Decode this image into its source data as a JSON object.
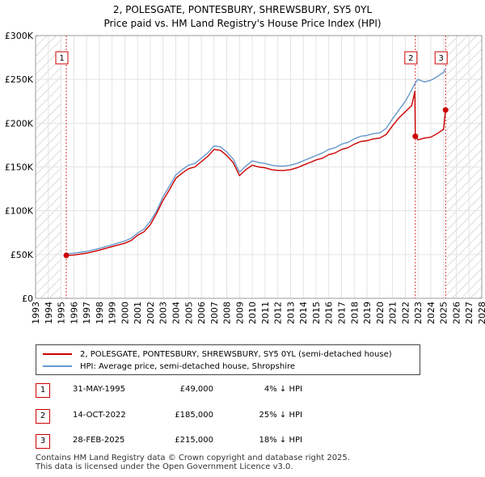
{
  "title_line1": "2, POLESGATE, PONTESBURY, SHREWSBURY, SY5 0YL",
  "title_line2": "Price paid vs. HM Land Registry's House Price Index (HPI)",
  "chart_data": {
    "type": "line",
    "xlim": [
      1993,
      2028
    ],
    "ylim": [
      0,
      300000
    ],
    "yticks": [
      {
        "value": 0,
        "label": "£0"
      },
      {
        "value": 50000,
        "label": "£50K"
      },
      {
        "value": 100000,
        "label": "£100K"
      },
      {
        "value": 150000,
        "label": "£150K"
      },
      {
        "value": 200000,
        "label": "£200K"
      },
      {
        "value": 250000,
        "label": "£250K"
      },
      {
        "value": 300000,
        "label": "£300K"
      }
    ],
    "xticks": [
      1993,
      1994,
      1995,
      1996,
      1997,
      1998,
      1999,
      2000,
      2001,
      2002,
      2003,
      2004,
      2005,
      2006,
      2007,
      2008,
      2009,
      2010,
      2011,
      2012,
      2013,
      2014,
      2015,
      2016,
      2017,
      2018,
      2019,
      2020,
      2021,
      2022,
      2023,
      2024,
      2025,
      2026,
      2027,
      2028
    ],
    "grid": true,
    "hatched_ranges": [
      [
        1993,
        1995.0
      ],
      [
        2025.2,
        2028
      ]
    ],
    "series": [
      {
        "name": "2, POLESGATE, PONTESBURY, SHREWSBURY, SY5 0YL (semi-detached house)",
        "color": "#cc0000",
        "x": [
          1995.41,
          1996,
          1997,
          1998,
          1999,
          2000,
          2000.5,
          2001,
          2001.5,
          2002,
          2002.5,
          2003,
          2003.5,
          2004,
          2004.5,
          2005,
          2005.5,
          2006,
          2006.5,
          2007,
          2007.5,
          2008,
          2008.5,
          2009,
          2009.5,
          2010,
          2010.5,
          2011,
          2011.5,
          2012,
          2012.5,
          2013,
          2013.5,
          2014,
          2014.5,
          2015,
          2015.5,
          2016,
          2016.5,
          2017,
          2017.5,
          2018,
          2018.5,
          2019,
          2019.5,
          2020,
          2020.5,
          2021,
          2021.5,
          2022,
          2022.5,
          2022.75,
          2022.79,
          2023,
          2023.5,
          2024,
          2024.5,
          2025,
          2025.16
        ],
        "y": [
          49000,
          49500,
          51500,
          55000,
          59000,
          63000,
          66000,
          72000,
          76000,
          84000,
          97000,
          112000,
          124000,
          137000,
          143000,
          148000,
          150000,
          156000,
          162000,
          170000,
          169000,
          163000,
          155000,
          140000,
          147000,
          152000,
          150000,
          149000,
          147000,
          146000,
          146000,
          147000,
          149000,
          152000,
          155000,
          158000,
          160000,
          164000,
          166000,
          170000,
          172000,
          176000,
          179000,
          180000,
          182000,
          183000,
          187000,
          197000,
          206000,
          213000,
          220000,
          236000,
          185000,
          181000,
          183000,
          184000,
          188000,
          193000,
          215000
        ]
      },
      {
        "name": "HPI: Average price, semi-detached house, Shropshire",
        "color": "#6699cc",
        "x": [
          1995.41,
          1996,
          1997,
          1998,
          1999,
          2000,
          2000.5,
          2001,
          2001.5,
          2002,
          2002.5,
          2003,
          2003.5,
          2004,
          2004.5,
          2005,
          2005.5,
          2006,
          2006.5,
          2007,
          2007.5,
          2008,
          2008.5,
          2009,
          2009.5,
          2010,
          2010.5,
          2011,
          2011.5,
          2012,
          2012.5,
          2013,
          2013.5,
          2014,
          2014.5,
          2015,
          2015.5,
          2016,
          2016.5,
          2017,
          2017.5,
          2018,
          2018.5,
          2019,
          2019.5,
          2020,
          2020.5,
          2021,
          2021.5,
          2022,
          2022.5,
          2022.79,
          2023,
          2023.5,
          2024,
          2024.5,
          2025,
          2025.16
        ],
        "y": [
          51000,
          51500,
          53500,
          57000,
          61000,
          65500,
          68500,
          74500,
          79000,
          88000,
          100000,
          116000,
          128000,
          141000,
          147000,
          152000,
          154000,
          160000,
          166000,
          174000,
          173000,
          167000,
          159000,
          144000,
          151000,
          157000,
          155000,
          154000,
          152000,
          151000,
          151000,
          152000,
          154000,
          157000,
          160000,
          163000,
          166000,
          170000,
          172000,
          176000,
          178000,
          182000,
          185000,
          186000,
          188000,
          189000,
          194000,
          205000,
          215000,
          225000,
          238000,
          246000,
          250000,
          247000,
          249000,
          253000,
          258000,
          262000
        ]
      }
    ],
    "sales": [
      {
        "label": "1",
        "x": 1995.41,
        "y": 49000
      },
      {
        "label": "2",
        "x": 2022.79,
        "y": 185000
      },
      {
        "label": "3",
        "x": 2025.16,
        "y": 215000
      }
    ]
  },
  "legend": {
    "property": "2, POLESGATE, PONTESBURY, SHREWSBURY, SY5 0YL (semi-detached house)",
    "hpi": "HPI: Average price, semi-detached house, Shropshire",
    "property_color": "#cc0000",
    "hpi_color": "#6699cc"
  },
  "sales_table": [
    {
      "label": "1",
      "date": "31-MAY-1995",
      "price": "£49,000",
      "delta": "4% ↓ HPI"
    },
    {
      "label": "2",
      "date": "14-OCT-2022",
      "price": "£185,000",
      "delta": "25% ↓ HPI"
    },
    {
      "label": "3",
      "date": "28-FEB-2025",
      "price": "£215,000",
      "delta": "18% ↓ HPI"
    }
  ],
  "footer_line1": "Contains HM Land Registry data © Crown copyright and database right 2025.",
  "footer_line2": "This data is licensed under the Open Government Licence v3.0."
}
